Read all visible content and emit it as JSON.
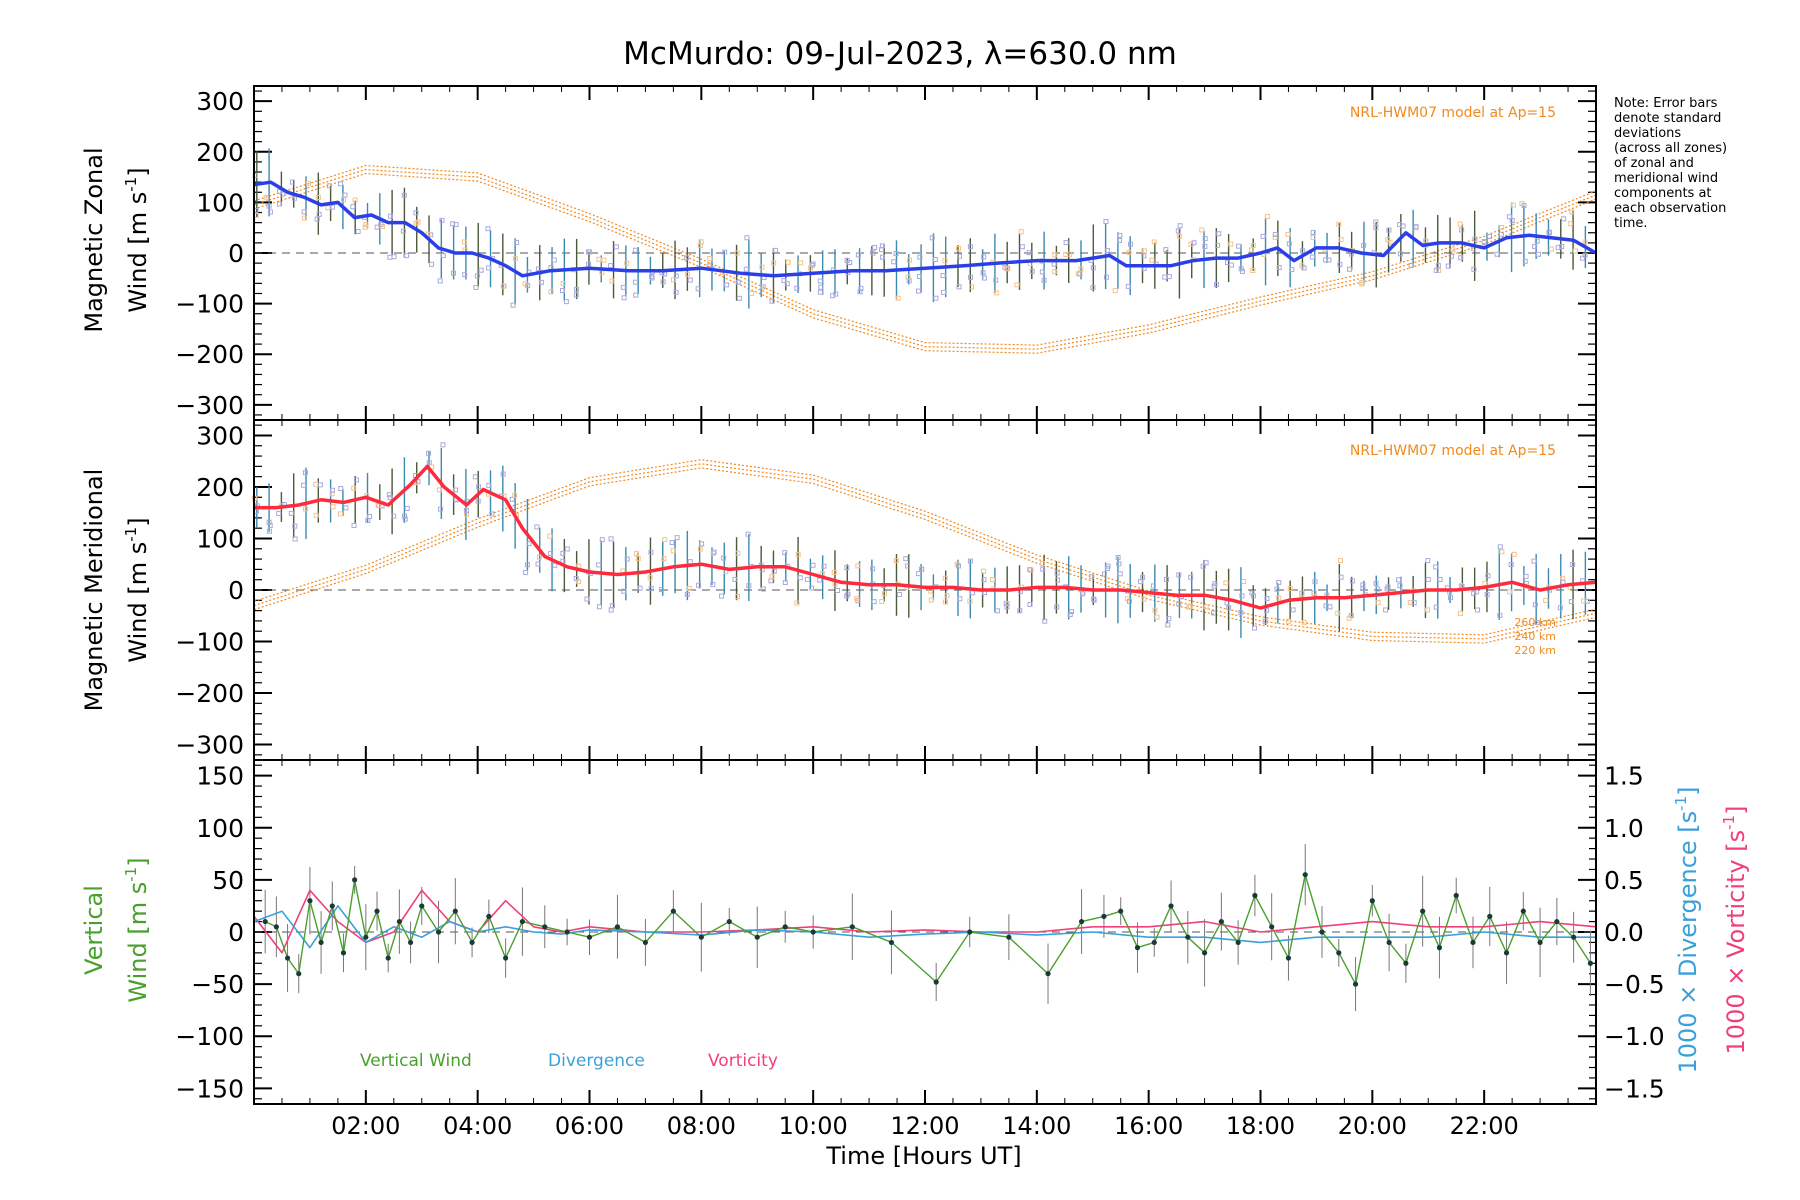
{
  "chart_data": {
    "type": "line",
    "title": "McMurdo: 09-Jul-2023, λ=630.0 nm",
    "xlabel": "Time [Hours UT]",
    "xlim": [
      0,
      24
    ],
    "xticks": [
      2,
      4,
      6,
      8,
      10,
      12,
      14,
      16,
      18,
      20,
      22
    ],
    "xtick_labels": [
      "02:00",
      "04:00",
      "06:00",
      "08:00",
      "10:00",
      "12:00",
      "14:00",
      "16:00",
      "18:00",
      "20:00",
      "22:00"
    ],
    "note": "Note: Error bars denote standard deviations (across all zones) of zonal and meridional wind components at each observation time.",
    "note_lines": [
      "Note: Error bars",
      "denote standard",
      "deviations",
      "(across all zones)",
      "of zonal and",
      "meridional wind",
      "components at",
      "each observation",
      "time."
    ],
    "model_label": "NRL-HWM07 model at Ap=15",
    "altitude_labels": [
      "260 km",
      "240 km",
      "220 km"
    ],
    "colors": {
      "zonal": "#2a3fe8",
      "meridional": "#ff2a3c",
      "model": "#f28a1e",
      "vertical": "#4aa02c",
      "divergence": "#3aa0dc",
      "vorticity": "#f0407a",
      "scatter": "#a8aadc"
    },
    "panels": [
      {
        "id": "zonal",
        "ylabel_line1": "Magnetic Zonal",
        "ylabel_line2_prefix": "Wind [m s",
        "ylabel_sup": "-1",
        "ylabel_suffix": "]",
        "ylim": [
          -330,
          330
        ],
        "yticks": [
          -300,
          -200,
          -100,
          0,
          100,
          200,
          300
        ],
        "ytick_labels": [
          "−300",
          "−200",
          "−100",
          "0",
          "100",
          "200",
          "300"
        ],
        "series": {
          "name": "Magnetic Zonal Wind",
          "x": [
            0.0,
            0.3,
            0.6,
            0.9,
            1.2,
            1.5,
            1.8,
            2.1,
            2.4,
            2.7,
            3.0,
            3.3,
            3.6,
            3.9,
            4.2,
            4.5,
            4.8,
            5.3,
            6.0,
            6.7,
            7.3,
            8.0,
            8.7,
            9.3,
            10.0,
            10.7,
            11.3,
            12.0,
            12.7,
            13.3,
            14.0,
            14.7,
            15.0,
            15.3,
            15.6,
            16.0,
            16.4,
            16.8,
            17.2,
            17.6,
            18.0,
            18.3,
            18.6,
            19.0,
            19.4,
            19.8,
            20.2,
            20.6,
            20.9,
            21.2,
            21.6,
            22.0,
            22.4,
            22.8,
            23.2,
            23.6,
            24.0
          ],
          "y": [
            135,
            140,
            120,
            110,
            95,
            100,
            70,
            75,
            60,
            60,
            40,
            10,
            0,
            0,
            -10,
            -25,
            -45,
            -35,
            -30,
            -35,
            -35,
            -30,
            -40,
            -45,
            -40,
            -35,
            -35,
            -30,
            -25,
            -20,
            -15,
            -15,
            -10,
            -5,
            -25,
            -25,
            -25,
            -15,
            -10,
            -10,
            0,
            10,
            -15,
            10,
            10,
            0,
            -5,
            40,
            15,
            20,
            20,
            10,
            30,
            35,
            30,
            25,
            0
          ]
        },
        "model": {
          "x": [
            0,
            2,
            4,
            6,
            8,
            10,
            12,
            14,
            16,
            18,
            20,
            22,
            24
          ],
          "y": [
            95,
            165,
            150,
            70,
            -20,
            -120,
            -185,
            -190,
            -150,
            -95,
            -45,
            25,
            115
          ]
        }
      },
      {
        "id": "meridional",
        "ylabel_line1": "Magnetic Meridional",
        "ylabel_line2_prefix": "Wind [m s",
        "ylabel_sup": "-1",
        "ylabel_suffix": "]",
        "ylim": [
          -330,
          330
        ],
        "yticks": [
          -300,
          -200,
          -100,
          0,
          100,
          200,
          300
        ],
        "ytick_labels": [
          "−300",
          "−200",
          "−100",
          "0",
          "100",
          "200",
          "300"
        ],
        "series": {
          "name": "Magnetic Meridional Wind",
          "x": [
            0.0,
            0.4,
            0.8,
            1.2,
            1.6,
            2.0,
            2.4,
            2.8,
            3.1,
            3.4,
            3.8,
            4.1,
            4.5,
            4.8,
            5.2,
            5.6,
            6.0,
            6.5,
            7.0,
            7.5,
            8.0,
            8.5,
            9.0,
            9.5,
            10.0,
            10.5,
            11.0,
            11.5,
            12.0,
            12.5,
            13.0,
            13.5,
            14.0,
            14.5,
            15.0,
            15.5,
            16.0,
            16.5,
            17.0,
            17.5,
            18.0,
            18.5,
            19.0,
            19.5,
            20.0,
            20.5,
            21.0,
            21.5,
            22.0,
            22.5,
            23.0,
            23.5,
            24.0
          ],
          "y": [
            160,
            160,
            165,
            175,
            170,
            180,
            165,
            205,
            240,
            200,
            165,
            195,
            175,
            120,
            65,
            45,
            35,
            30,
            35,
            45,
            50,
            40,
            45,
            45,
            30,
            15,
            10,
            10,
            5,
            5,
            0,
            0,
            5,
            5,
            0,
            0,
            -5,
            -10,
            -10,
            -20,
            -35,
            -20,
            -15,
            -15,
            -10,
            -5,
            0,
            0,
            5,
            15,
            0,
            10,
            15
          ]
        },
        "model": {
          "x": [
            0,
            2,
            4,
            6,
            8,
            10,
            12,
            14,
            16,
            18,
            20,
            22,
            24
          ],
          "y": [
            -30,
            40,
            130,
            210,
            245,
            215,
            145,
            60,
            -10,
            -60,
            -90,
            -95,
            -45
          ]
        }
      },
      {
        "id": "vertical",
        "ylabel_line1": "Vertical",
        "ylabel_line2_prefix": "Wind [m s",
        "ylabel_sup": "-1",
        "ylabel_suffix": "]",
        "ylim": [
          -165,
          165
        ],
        "yticks": [
          -150,
          -100,
          -50,
          0,
          50,
          100,
          150
        ],
        "ytick_labels": [
          "−150",
          "−100",
          "−50",
          "0",
          "50",
          "100",
          "150"
        ],
        "y2lim": [
          -1.65,
          1.65
        ],
        "y2ticks": [
          -1.5,
          -1.0,
          -0.5,
          0.0,
          0.5,
          1.0,
          1.5
        ],
        "y2tick_labels": [
          "−1.5",
          "−1.0",
          "−0.5",
          "0.0",
          "0.5",
          "1.0",
          "1.5"
        ],
        "y2label_div_prefix": "1000 × Divergence [s",
        "y2label_vort_prefix": "1000 × Vorticity [s",
        "y2label_sup": "-1",
        "y2label_suffix": "]",
        "legend": [
          "Vertical Wind",
          "Divergence",
          "Vorticity"
        ],
        "series": [
          {
            "name": "Vertical Wind",
            "x": [
              0.2,
              0.4,
              0.6,
              0.8,
              1.0,
              1.2,
              1.4,
              1.6,
              1.8,
              2.0,
              2.2,
              2.4,
              2.6,
              2.8,
              3.0,
              3.3,
              3.6,
              3.9,
              4.2,
              4.5,
              4.8,
              5.2,
              5.6,
              6.0,
              6.5,
              7.0,
              7.5,
              8.0,
              8.5,
              9.0,
              9.5,
              10.0,
              10.7,
              11.4,
              12.2,
              12.8,
              13.5,
              14.2,
              14.8,
              15.2,
              15.5,
              15.8,
              16.1,
              16.4,
              16.7,
              17.0,
              17.3,
              17.6,
              17.9,
              18.2,
              18.5,
              18.8,
              19.1,
              19.4,
              19.7,
              20.0,
              20.3,
              20.6,
              20.9,
              21.2,
              21.5,
              21.8,
              22.1,
              22.4,
              22.7,
              23.0,
              23.3,
              23.6,
              23.9
            ],
            "y": [
              10,
              5,
              -25,
              -40,
              30,
              -10,
              25,
              -20,
              50,
              -5,
              20,
              -25,
              10,
              -10,
              25,
              0,
              20,
              -10,
              15,
              -25,
              10,
              5,
              0,
              -5,
              5,
              -10,
              20,
              -5,
              10,
              -5,
              5,
              0,
              5,
              -10,
              -48,
              0,
              -5,
              -40,
              10,
              15,
              20,
              -15,
              -10,
              25,
              -5,
              -20,
              10,
              -10,
              35,
              5,
              -25,
              55,
              0,
              -20,
              -50,
              30,
              -10,
              -30,
              20,
              -15,
              35,
              -10,
              15,
              -20,
              20,
              -10,
              10,
              -5,
              -30
            ]
          },
          {
            "name": "Divergence",
            "x": [
              0.0,
              0.5,
              1.0,
              1.5,
              2.0,
              2.5,
              3.0,
              3.5,
              4.0,
              4.5,
              5.0,
              5.5,
              6.0,
              7.0,
              8.0,
              9.0,
              10.0,
              11.0,
              12.0,
              13.0,
              14.0,
              15.0,
              16.0,
              17.0,
              18.0,
              19.0,
              20.0,
              21.0,
              22.0,
              23.0,
              24.0
            ],
            "y": [
              0.1,
              0.2,
              -0.15,
              0.25,
              -0.1,
              0.05,
              -0.05,
              0.1,
              0.0,
              0.05,
              0.0,
              -0.02,
              0.02,
              0.0,
              -0.03,
              0.02,
              0.0,
              -0.05,
              -0.02,
              0.0,
              -0.03,
              0.0,
              -0.05,
              -0.05,
              -0.1,
              -0.05,
              -0.05,
              -0.05,
              0.0,
              -0.05,
              -0.05
            ]
          },
          {
            "name": "Vorticity",
            "x": [
              0.0,
              0.5,
              1.0,
              1.5,
              2.0,
              2.5,
              3.0,
              3.5,
              4.0,
              4.5,
              5.0,
              5.5,
              6.0,
              7.0,
              8.0,
              9.0,
              10.0,
              11.0,
              12.0,
              13.0,
              14.0,
              15.0,
              16.0,
              17.0,
              18.0,
              19.0,
              20.0,
              21.0,
              22.0,
              23.0,
              24.0
            ],
            "y": [
              0.15,
              -0.2,
              0.4,
              0.1,
              -0.1,
              0.0,
              0.4,
              0.1,
              0.0,
              0.3,
              0.05,
              0.0,
              0.05,
              0.0,
              0.0,
              0.02,
              0.05,
              0.0,
              0.02,
              0.0,
              0.0,
              0.05,
              0.05,
              0.1,
              0.0,
              0.05,
              0.1,
              0.05,
              0.05,
              0.1,
              0.05
            ]
          }
        ]
      }
    ]
  }
}
